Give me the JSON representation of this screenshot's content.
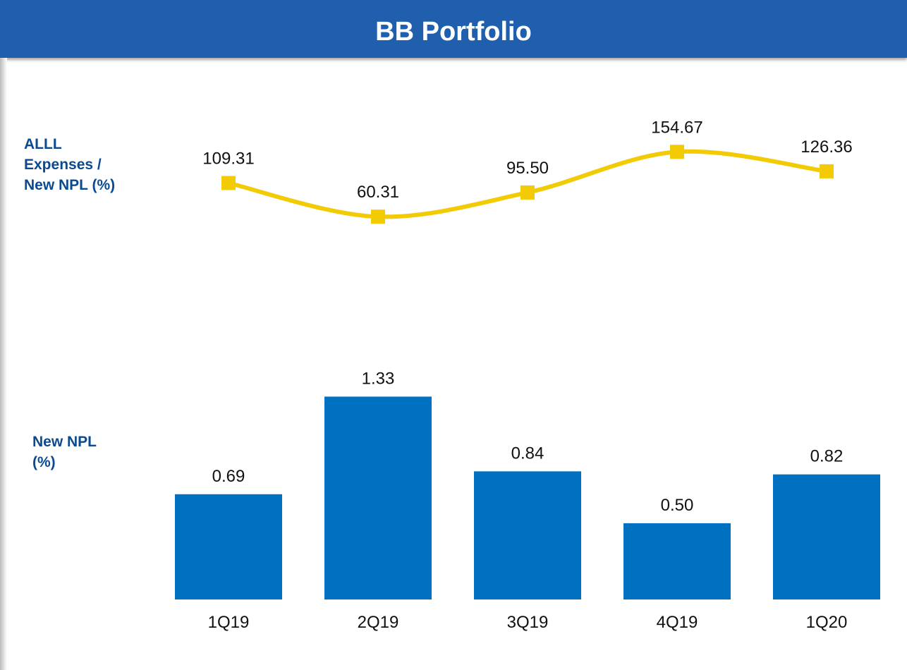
{
  "header": {
    "title": "BB Portfolio"
  },
  "chart_data": [
    {
      "type": "line",
      "label": "ALLL Expenses / New NPL (%)",
      "values": [
        109.31,
        60.31,
        95.5,
        154.67,
        126.36
      ],
      "value_labels": [
        "109.31",
        "60.31",
        "95.50",
        "154.67",
        "126.36"
      ],
      "color": "#f2cb05",
      "ylim": [
        0,
        273
      ]
    },
    {
      "type": "bar",
      "label": "New NPL (%)",
      "categories": [
        "1Q19",
        "2Q19",
        "3Q19",
        "4Q19",
        "1Q20"
      ],
      "values": [
        0.69,
        1.33,
        0.84,
        0.5,
        0.82
      ],
      "value_labels": [
        "0.69",
        "1.33",
        "0.84",
        "0.50",
        "0.82"
      ],
      "color": "#0070c0",
      "ylim": [
        0,
        1.6
      ]
    }
  ]
}
